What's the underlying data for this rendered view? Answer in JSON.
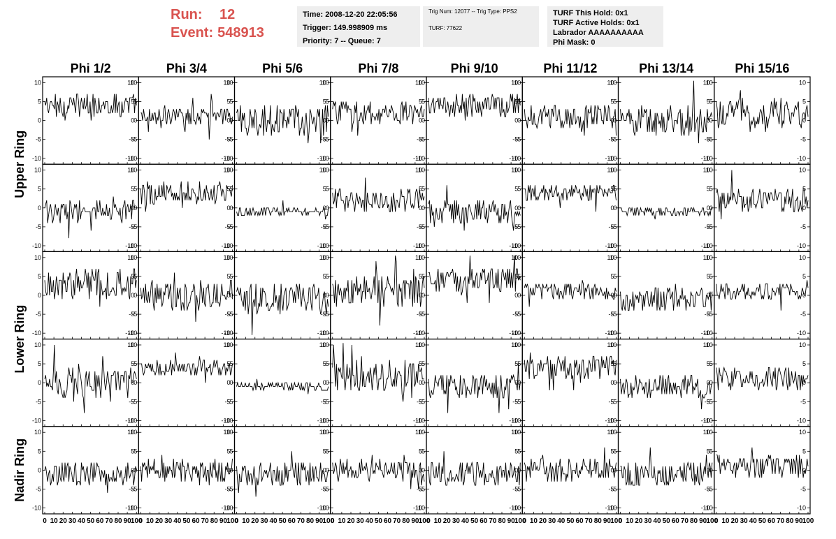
{
  "run": {
    "run_label": "Run:",
    "run_value": "12",
    "event_label": "Event:",
    "event_value": "548913"
  },
  "info": {
    "time": "Time: 2008-12-20 22:05:56",
    "trigger": "Trigger: 149.998909 ms",
    "priority": "Priority: 7 -- Queue: 7",
    "trig_num": "Trig Num: 12077 -- Trig Type: PPS2",
    "turf": "TURF: 77622",
    "turf_hold": "TURF This Hold: 0x1",
    "turf_active": "TURF Active Holds: 0x1",
    "labrador": "Labrador AAAAAAAAAA",
    "phi_mask": "Phi Mask: 0"
  },
  "colors": {
    "title_red": "#d9534f",
    "info_bg": "#eeeeee",
    "trace": "#000000"
  },
  "chart_data": {
    "type": "line",
    "columns": [
      "Phi 1/2",
      "Phi 3/4",
      "Phi 5/6",
      "Phi 7/8",
      "Phi 9/10",
      "Phi 11/12",
      "Phi 13/14",
      "Phi 15/16"
    ],
    "rows": [
      "Upper Ring",
      "Upper Ring",
      "Lower Ring",
      "Lower Ring",
      "Nadir Ring"
    ],
    "row_labels": [
      "Upper Ring",
      "Lower Ring",
      "Nadir Ring"
    ],
    "xlim": [
      0,
      100
    ],
    "ylim": [
      -11,
      11
    ],
    "x_ticks": [
      0,
      10,
      20,
      30,
      40,
      50,
      60,
      70,
      80,
      90,
      100
    ],
    "y_ticks": [
      10,
      5,
      0,
      -5,
      -10
    ],
    "samples": 96,
    "baselines": [
      [
        4,
        1,
        0,
        2,
        4,
        1,
        0,
        2
      ],
      [
        -1,
        4,
        -1,
        2,
        -1,
        4,
        -1,
        2
      ],
      [
        3,
        0,
        -1,
        1,
        4,
        1,
        -1,
        1
      ],
      [
        0,
        4,
        -1,
        2,
        -1,
        4,
        -1,
        1
      ],
      [
        -1,
        0,
        -1,
        0,
        -1,
        0,
        -1,
        1
      ]
    ],
    "amplitudes": [
      [
        3,
        2,
        4,
        3,
        3,
        3,
        4,
        4
      ],
      [
        3,
        3,
        1,
        3,
        3,
        2,
        1,
        3
      ],
      [
        4,
        4,
        4,
        4,
        3,
        2,
        3,
        2
      ],
      [
        4,
        2,
        1,
        4,
        3,
        3,
        3,
        3
      ],
      [
        3,
        3,
        3,
        3,
        3,
        3,
        3,
        3
      ]
    ]
  }
}
